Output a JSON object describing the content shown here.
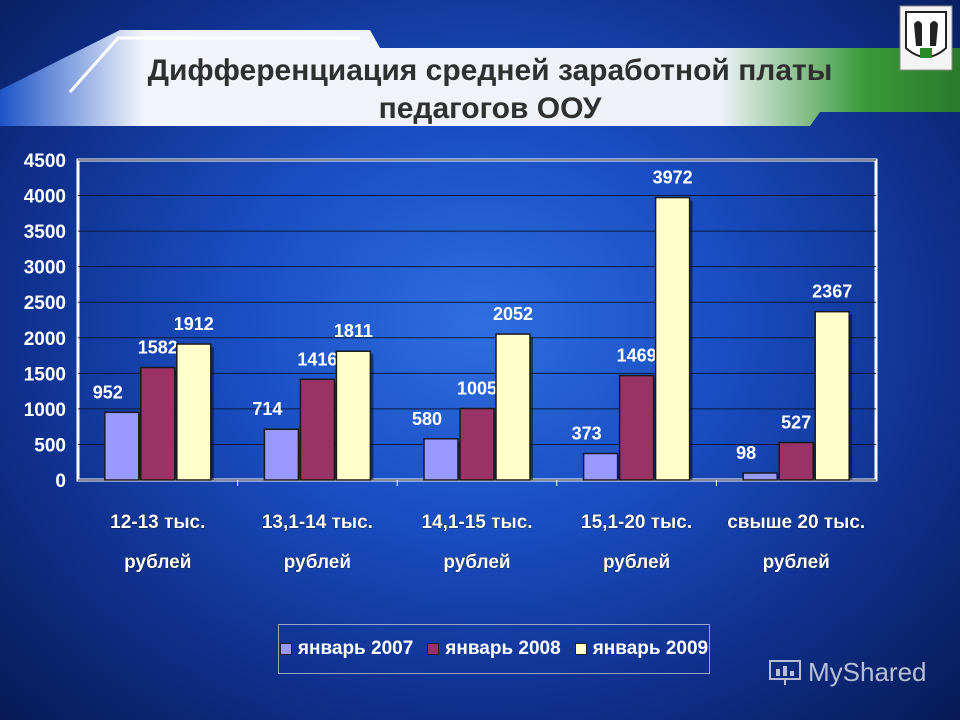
{
  "title": {
    "line1": "Дифференциация средней заработной платы",
    "line2": "педагогов ООУ"
  },
  "watermark": "MyShared",
  "colors": {
    "series_2007": "#9999ff",
    "series_2008": "#993366",
    "series_2009": "#ffffcc"
  },
  "chart_data": {
    "type": "bar",
    "categories": [
      [
        "12-13 тыс.",
        "рублей"
      ],
      [
        "13,1-14 тыс.",
        "рублей"
      ],
      [
        "14,1-15 тыс.",
        "рублей"
      ],
      [
        "15,1-20 тыс.",
        "рублей"
      ],
      [
        "свыше 20 тыс.",
        "рублей"
      ]
    ],
    "series": [
      {
        "name": "январь 2007",
        "values": [
          952,
          714,
          580,
          373,
          98
        ]
      },
      {
        "name": "январь 2008",
        "values": [
          1582,
          1416,
          1005,
          1469,
          527
        ]
      },
      {
        "name": "январь 2009",
        "values": [
          1912,
          1811,
          2052,
          3972,
          2367
        ]
      }
    ],
    "ylim": [
      0,
      4500
    ],
    "yticks": [
      0,
      500,
      1000,
      1500,
      2000,
      2500,
      3000,
      3500,
      4000,
      4500
    ],
    "grid": true,
    "legend": "bottom"
  }
}
